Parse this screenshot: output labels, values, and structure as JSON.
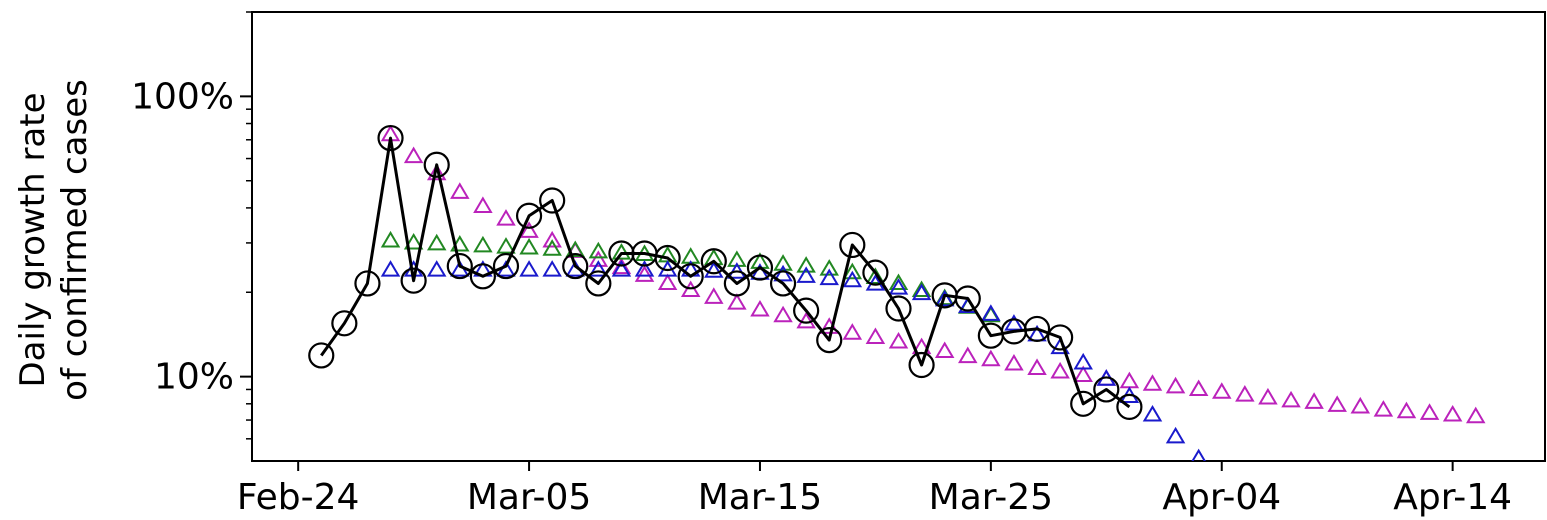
{
  "chart_data": {
    "type": "scatter",
    "title": "",
    "ylabel": [
      "Daily growth rate",
      "of confirmed cases"
    ],
    "xlabel": "",
    "x_unit": "date",
    "x_range": [
      "2020-02-22",
      "2020-04-18"
    ],
    "y_scale": "log",
    "y_range": [
      5,
      200
    ],
    "x_ticks": [
      {
        "date": "2020-02-24",
        "label": "Feb-24"
      },
      {
        "date": "2020-03-05",
        "label": "Mar-05"
      },
      {
        "date": "2020-03-15",
        "label": "Mar-15"
      },
      {
        "date": "2020-03-25",
        "label": "Mar-25"
      },
      {
        "date": "2020-04-04",
        "label": "Apr-04"
      },
      {
        "date": "2020-04-14",
        "label": "Apr-14"
      }
    ],
    "y_ticks": [
      {
        "value": 10,
        "label": "10%"
      },
      {
        "value": 100,
        "label": "100%"
      }
    ],
    "grid": false,
    "legend": "none",
    "series": [
      {
        "marker": "circle-open",
        "line": true,
        "color": "#000000",
        "x": [
          "2020-02-25",
          "2020-02-26",
          "2020-02-27",
          "2020-02-28",
          "2020-02-29",
          "2020-03-01",
          "2020-03-02",
          "2020-03-03",
          "2020-03-04",
          "2020-03-05",
          "2020-03-06",
          "2020-03-07",
          "2020-03-08",
          "2020-03-09",
          "2020-03-10",
          "2020-03-11",
          "2020-03-12",
          "2020-03-13",
          "2020-03-14",
          "2020-03-15",
          "2020-03-16",
          "2020-03-17",
          "2020-03-18",
          "2020-03-19",
          "2020-03-20",
          "2020-03-21",
          "2020-03-22",
          "2020-03-23",
          "2020-03-24",
          "2020-03-25",
          "2020-03-26",
          "2020-03-27",
          "2020-03-28",
          "2020-03-29",
          "2020-03-30",
          "2020-03-31"
        ],
        "y": [
          11.9,
          15.5,
          21.5,
          71,
          22,
          57,
          24.8,
          22.8,
          24.8,
          37.5,
          42.5,
          24.8,
          21.5,
          27.5,
          27.5,
          26.5,
          22.8,
          25.8,
          21.5,
          24.5,
          21.5,
          17.2,
          13.5,
          29.5,
          23.5,
          17.5,
          11,
          19.5,
          19,
          14,
          14.5,
          14.8,
          13.8,
          8,
          9,
          7.8
        ]
      },
      {
        "marker": "triangle-open",
        "line": false,
        "color": "#bb22bb",
        "x": [
          "2020-02-28",
          "2020-02-29",
          "2020-03-01",
          "2020-03-02",
          "2020-03-03",
          "2020-03-04",
          "2020-03-05",
          "2020-03-06",
          "2020-03-07",
          "2020-03-08",
          "2020-03-09",
          "2020-03-10",
          "2020-03-11",
          "2020-03-12",
          "2020-03-13",
          "2020-03-14",
          "2020-03-15",
          "2020-03-16",
          "2020-03-17",
          "2020-03-18",
          "2020-03-19",
          "2020-03-20",
          "2020-03-21",
          "2020-03-22",
          "2020-03-23",
          "2020-03-24",
          "2020-03-25",
          "2020-03-26",
          "2020-03-27",
          "2020-03-28",
          "2020-03-29",
          "2020-03-30",
          "2020-03-31",
          "2020-04-01",
          "2020-04-02",
          "2020-04-03",
          "2020-04-04",
          "2020-04-05",
          "2020-04-06",
          "2020-04-07",
          "2020-04-08",
          "2020-04-09",
          "2020-04-10",
          "2020-04-11",
          "2020-04-12",
          "2020-04-13",
          "2020-04-14",
          "2020-04-15"
        ],
        "y": [
          73,
          61,
          53,
          45.5,
          40.5,
          36.5,
          33,
          30.5,
          28,
          26,
          24.5,
          23,
          21.5,
          20.3,
          19.2,
          18.3,
          17.3,
          16.5,
          15.7,
          15,
          14.3,
          13.8,
          13.3,
          12.7,
          12.3,
          11.8,
          11.5,
          11.1,
          10.7,
          10.4,
          10.1,
          9.8,
          9.6,
          9.4,
          9.2,
          9,
          8.8,
          8.6,
          8.4,
          8.2,
          8.1,
          7.9,
          7.8,
          7.6,
          7.5,
          7.4,
          7.3,
          7.2
        ]
      },
      {
        "marker": "triangle-open",
        "line": false,
        "color": "#228822",
        "x": [
          "2020-02-28",
          "2020-02-29",
          "2020-03-01",
          "2020-03-02",
          "2020-03-03",
          "2020-03-04",
          "2020-03-05",
          "2020-03-06",
          "2020-03-07",
          "2020-03-08",
          "2020-03-09",
          "2020-03-10",
          "2020-03-11",
          "2020-03-12",
          "2020-03-13",
          "2020-03-14",
          "2020-03-15",
          "2020-03-16",
          "2020-03-17",
          "2020-03-18",
          "2020-03-19",
          "2020-03-20",
          "2020-03-21",
          "2020-03-22",
          "2020-03-23",
          "2020-03-24",
          "2020-03-25"
        ],
        "y": [
          30.5,
          30,
          29.8,
          29.5,
          29.3,
          29,
          28.8,
          28.5,
          28.2,
          27.9,
          27.6,
          27.3,
          27,
          26.7,
          26.4,
          26,
          25.6,
          25.2,
          24.8,
          24.2,
          23.5,
          22.6,
          21.5,
          20.3,
          19,
          17.7,
          16.5
        ]
      },
      {
        "marker": "triangle-open",
        "line": false,
        "color": "#1a1acc",
        "x": [
          "2020-02-28",
          "2020-02-29",
          "2020-03-01",
          "2020-03-02",
          "2020-03-03",
          "2020-03-04",
          "2020-03-05",
          "2020-03-06",
          "2020-03-07",
          "2020-03-08",
          "2020-03-09",
          "2020-03-10",
          "2020-03-11",
          "2020-03-12",
          "2020-03-13",
          "2020-03-14",
          "2020-03-15",
          "2020-03-16",
          "2020-03-17",
          "2020-03-18",
          "2020-03-19",
          "2020-03-20",
          "2020-03-21",
          "2020-03-22",
          "2020-03-23",
          "2020-03-24",
          "2020-03-25",
          "2020-03-26",
          "2020-03-27",
          "2020-03-28",
          "2020-03-29",
          "2020-03-30",
          "2020-03-31",
          "2020-04-01",
          "2020-04-02",
          "2020-04-03"
        ],
        "y": [
          24,
          24,
          24,
          24,
          24,
          24,
          24,
          24,
          24,
          24,
          24,
          24,
          24,
          24,
          23.8,
          23.6,
          23.4,
          23.1,
          22.8,
          22.4,
          22,
          21.4,
          20.7,
          19.8,
          18.8,
          17.8,
          16.7,
          15.4,
          14.1,
          12.7,
          11.2,
          9.8,
          8.5,
          7.3,
          6.1,
          5.1
        ]
      }
    ]
  }
}
